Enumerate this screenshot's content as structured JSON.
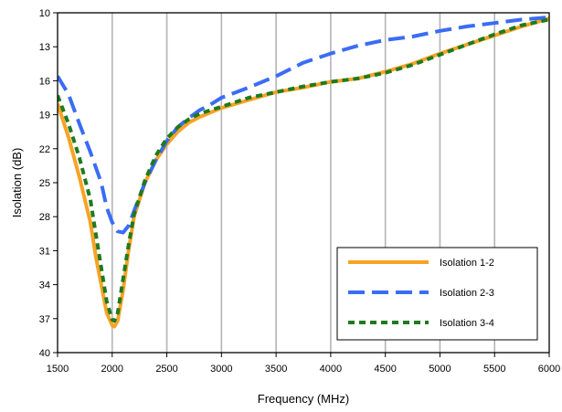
{
  "chart_data": {
    "type": "line",
    "xlabel": "Frequency (MHz)",
    "ylabel": "Isolation (dB)",
    "xlim": [
      1500,
      6000
    ],
    "ylim": [
      10,
      40
    ],
    "y_inverted": true,
    "x_ticks": [
      1500,
      2000,
      2500,
      3000,
      3500,
      4000,
      4500,
      5000,
      5500,
      6000
    ],
    "y_ticks": [
      10,
      13,
      16,
      19,
      22,
      25,
      28,
      31,
      34,
      37,
      40
    ],
    "grid": "vertical",
    "legend_position": "bottom-right",
    "series": [
      {
        "name": "Isolation 1-2",
        "color": "#f7a325",
        "style": "solid",
        "x": [
          1500,
          1600,
          1700,
          1800,
          1850,
          1900,
          1950,
          2000,
          2020,
          2050,
          2100,
          2150,
          2200,
          2300,
          2400,
          2500,
          2600,
          2700,
          2800,
          2900,
          3000,
          3250,
          3500,
          3750,
          4000,
          4250,
          4500,
          4750,
          5000,
          5250,
          5500,
          5750,
          6000
        ],
        "y": [
          18,
          21,
          24.5,
          28.5,
          31.5,
          34,
          36.5,
          37.6,
          37.7,
          37.2,
          34.5,
          31,
          28,
          25,
          23,
          21.6,
          20.5,
          19.7,
          19.2,
          18.8,
          18.4,
          17.7,
          17,
          16.6,
          16.1,
          15.8,
          15.2,
          14.5,
          13.6,
          12.8,
          12,
          11.2,
          10.5
        ]
      },
      {
        "name": "Isolation 2-3",
        "color": "#3b6cf5",
        "style": "dashed",
        "x": [
          1500,
          1600,
          1700,
          1800,
          1900,
          1950,
          2000,
          2050,
          2100,
          2150,
          2200,
          2300,
          2400,
          2500,
          2600,
          2700,
          2800,
          2900,
          3000,
          3250,
          3500,
          3750,
          4000,
          4250,
          4500,
          4750,
          5000,
          5250,
          5500,
          5750,
          6000
        ],
        "y": [
          15.6,
          17.2,
          19.8,
          22.3,
          25,
          27.2,
          28.5,
          29.3,
          29.4,
          28.8,
          27.5,
          25,
          23,
          21.3,
          20.1,
          19.3,
          18.6,
          18.1,
          17.5,
          16.6,
          15.6,
          14.4,
          13.6,
          12.9,
          12.4,
          12.1,
          11.6,
          11.2,
          10.9,
          10.6,
          10.4
        ]
      },
      {
        "name": "Isolation 3-4",
        "color": "#1f7a1f",
        "style": "dotted",
        "x": [
          1500,
          1600,
          1700,
          1800,
          1850,
          1900,
          1950,
          2000,
          2020,
          2050,
          2100,
          2150,
          2200,
          2300,
          2400,
          2500,
          2600,
          2700,
          2800,
          2900,
          3000,
          3250,
          3500,
          3750,
          4000,
          4250,
          4500,
          4750,
          5000,
          5250,
          5500,
          5750,
          6000
        ],
        "y": [
          17.3,
          19.8,
          22.8,
          26.5,
          29.5,
          32.5,
          35.5,
          37.1,
          37.2,
          36.5,
          33.5,
          30.5,
          27.8,
          24.8,
          22.6,
          21.1,
          20.1,
          19.4,
          18.9,
          18.6,
          18.3,
          17.5,
          17,
          16.5,
          16.1,
          15.8,
          15.3,
          14.6,
          13.7,
          12.8,
          11.9,
          11.1,
          10.6
        ]
      }
    ]
  }
}
